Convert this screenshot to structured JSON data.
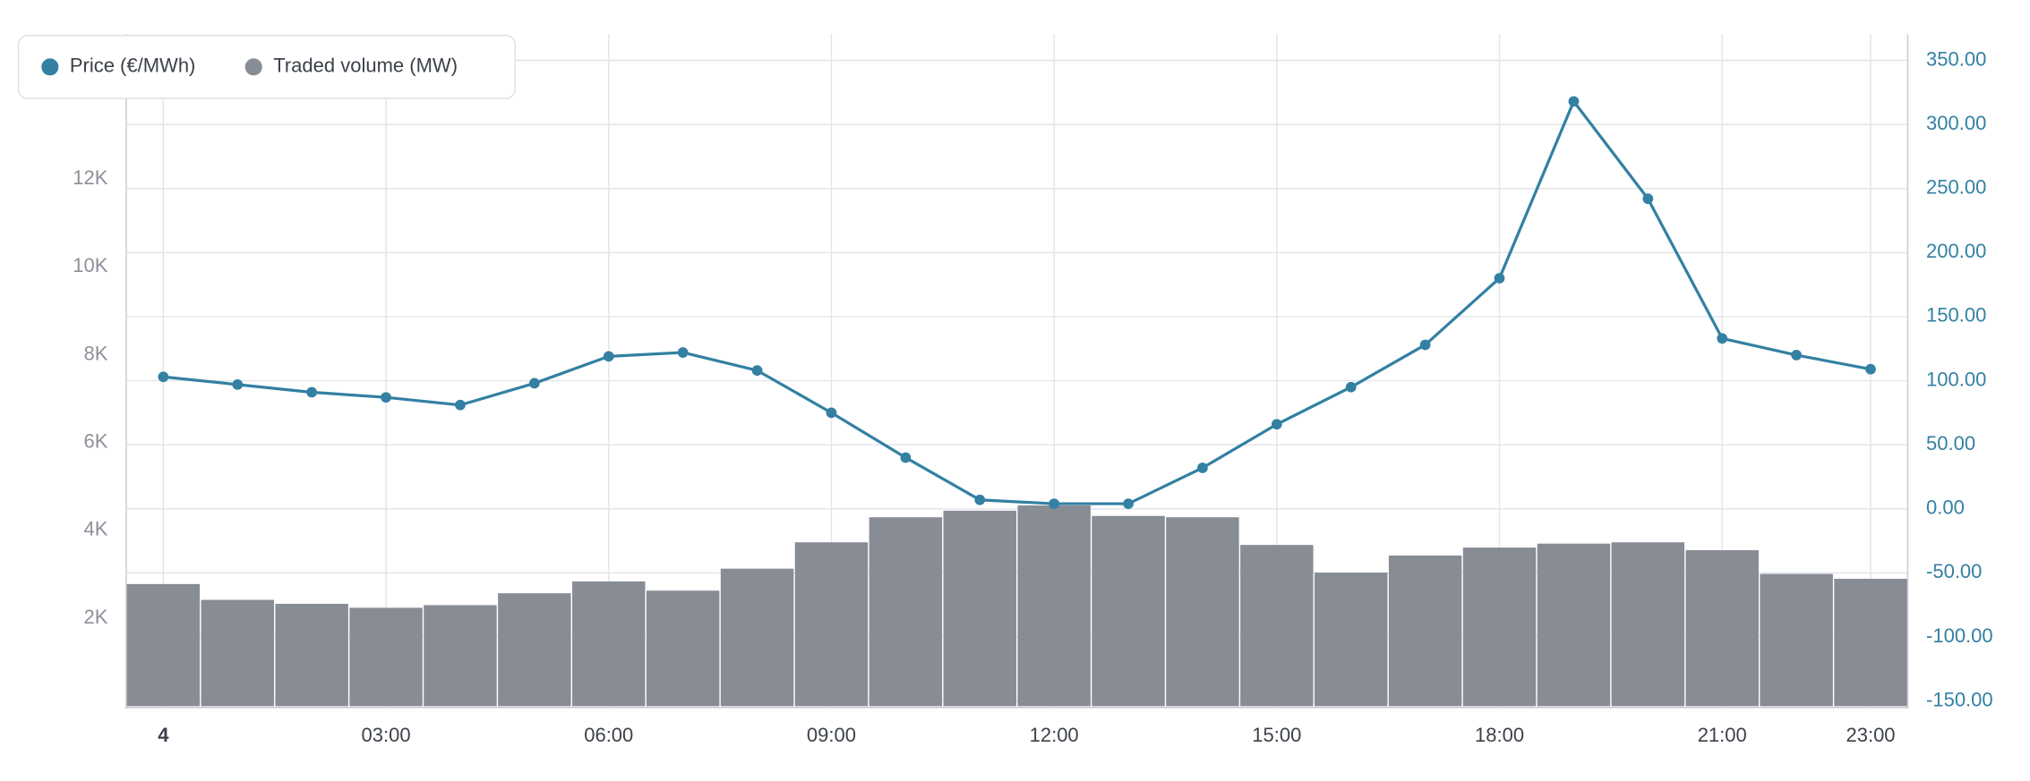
{
  "chart_data": {
    "type": "bar-line",
    "x": [
      0,
      1,
      2,
      3,
      4,
      5,
      6,
      7,
      8,
      9,
      10,
      11,
      12,
      13,
      14,
      15,
      16,
      17,
      18,
      19,
      20,
      21,
      22,
      23
    ],
    "xlim": [
      -0.5,
      23.5
    ],
    "xticks": [
      {
        "value": 0,
        "label": "4"
      },
      {
        "value": 3,
        "label": "03:00"
      },
      {
        "value": 6,
        "label": "06:00"
      },
      {
        "value": 9,
        "label": "09:00"
      },
      {
        "value": 12,
        "label": "12:00"
      },
      {
        "value": 15,
        "label": "15:00"
      },
      {
        "value": 18,
        "label": "18:00"
      },
      {
        "value": 21,
        "label": "21:00"
      },
      {
        "value": 23,
        "label": "23:00"
      }
    ],
    "ylim": [
      0,
      14700
    ],
    "yticks": [
      {
        "value": 2000,
        "label": "2K"
      },
      {
        "value": 4000,
        "label": "4K"
      },
      {
        "value": 6000,
        "label": "6K"
      },
      {
        "value": 8000,
        "label": "8K"
      },
      {
        "value": 10000,
        "label": "10K"
      },
      {
        "value": 12000,
        "label": "12K"
      }
    ],
    "y2lim": [
      -154,
      350
    ],
    "y2ticks": [
      {
        "value": 350,
        "label": "350.00"
      },
      {
        "value": 300,
        "label": "300.00"
      },
      {
        "value": 250,
        "label": "250.00"
      },
      {
        "value": 200,
        "label": "200.00"
      },
      {
        "value": 150,
        "label": "150.00"
      },
      {
        "value": 100,
        "label": "100.00"
      },
      {
        "value": 50,
        "label": "50.00"
      },
      {
        "value": 0,
        "label": "0.00"
      },
      {
        "value": -50,
        "label": "-50.00"
      },
      {
        "value": -100,
        "label": "-100.00"
      },
      {
        "value": -150,
        "label": "-150.00"
      }
    ],
    "grid": true,
    "legend": "top-left",
    "series": [
      {
        "name": "Price (€/MWh)",
        "color": "#3380a3",
        "type": "line",
        "axis": "y2",
        "values": [
          103,
          97,
          91,
          87,
          81,
          98,
          119,
          122,
          108,
          75,
          40,
          7,
          4,
          4,
          32,
          66,
          95,
          128,
          180,
          318,
          242,
          133,
          120,
          109
        ]
      },
      {
        "name": "Traded volume (MW)",
        "color": "#878c95",
        "type": "bar",
        "values": [
          2780,
          2420,
          2330,
          2240,
          2300,
          2570,
          2840,
          2630,
          3130,
          3730,
          4300,
          4450,
          4570,
          4330,
          4300,
          3670,
          3040,
          3430,
          3610,
          3700,
          3730,
          3550,
          3010,
          2900
        ]
      }
    ]
  }
}
